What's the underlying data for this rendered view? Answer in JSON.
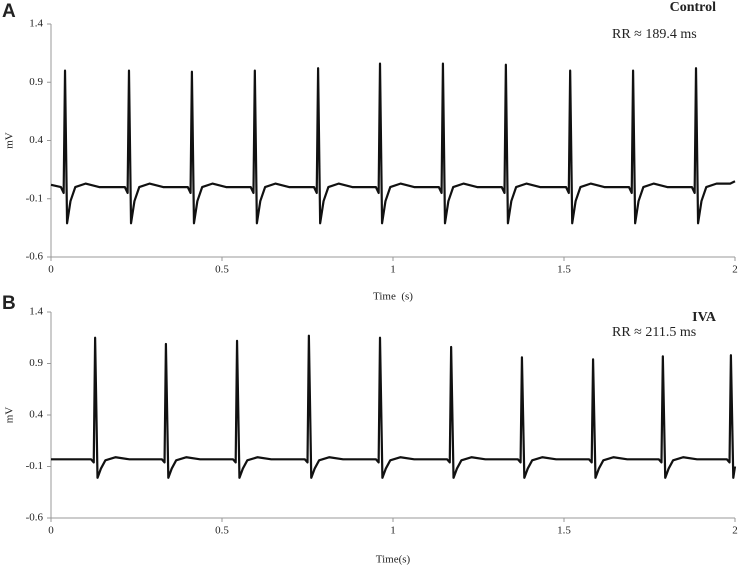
{
  "chart_data": [
    {
      "type": "line",
      "panel": "A",
      "title": "Control",
      "annotation": "RR ≈ 189.4 ms",
      "xlabel": "Time  (s)",
      "ylabel": "mV",
      "xlim": [
        0,
        2
      ],
      "xticks": [
        0,
        0.5,
        1,
        1.5,
        2
      ],
      "ylim": [
        -0.6,
        1.4
      ],
      "yticks": [
        -0.6,
        -0.1,
        0.4,
        0.9,
        1.4
      ],
      "x": [
        0,
        0.029,
        0.037,
        0.041,
        0.047,
        0.057,
        0.071,
        0.101,
        0.141,
        0.216,
        0.224,
        0.228,
        0.234,
        0.244,
        0.258,
        0.288,
        0.328,
        0.4,
        0.408,
        0.412,
        0.418,
        0.428,
        0.442,
        0.472,
        0.512,
        0.584,
        0.592,
        0.596,
        0.602,
        0.612,
        0.626,
        0.656,
        0.696,
        0.769,
        0.777,
        0.781,
        0.787,
        0.797,
        0.811,
        0.841,
        0.881,
        0.95,
        0.958,
        0.962,
        0.968,
        0.978,
        0.992,
        1.022,
        1.062,
        1.134,
        1.142,
        1.146,
        1.152,
        1.162,
        1.176,
        1.206,
        1.246,
        1.318,
        1.326,
        1.33,
        1.336,
        1.346,
        1.36,
        1.39,
        1.43,
        1.506,
        1.514,
        1.518,
        1.524,
        1.534,
        1.548,
        1.578,
        1.618,
        1.69,
        1.698,
        1.702,
        1.708,
        1.718,
        1.732,
        1.762,
        1.802,
        1.874,
        1.882,
        1.886,
        1.892,
        1.902,
        1.916,
        1.946,
        1.986,
        2
      ],
      "series": [
        {
          "color": "#111111",
          "values": [
            0.02,
            0.0,
            -0.05,
            1.0,
            -0.31,
            -0.12,
            0.0,
            0.03,
            0.0,
            0.0,
            -0.05,
            1.0,
            -0.31,
            -0.12,
            0.0,
            0.03,
            0.0,
            0.0,
            -0.05,
            0.99,
            -0.31,
            -0.12,
            0.0,
            0.03,
            0.0,
            0.0,
            -0.05,
            1.0,
            -0.31,
            -0.12,
            0.0,
            0.03,
            0.0,
            0.0,
            -0.05,
            1.02,
            -0.31,
            -0.12,
            0.0,
            0.03,
            0.0,
            0.0,
            -0.05,
            1.06,
            -0.31,
            -0.12,
            0.0,
            0.03,
            0.0,
            0.0,
            -0.05,
            1.06,
            -0.31,
            -0.12,
            0.0,
            0.03,
            0.0,
            0.0,
            -0.05,
            1.05,
            -0.31,
            -0.12,
            0.0,
            0.03,
            0.0,
            0.0,
            -0.05,
            1.0,
            -0.31,
            -0.12,
            0.0,
            0.03,
            0.0,
            0.0,
            -0.05,
            1.0,
            -0.31,
            -0.12,
            0.0,
            0.03,
            0.0,
            0.0,
            -0.05,
            1.02,
            -0.31,
            -0.12,
            0.0,
            0.03,
            0.03,
            0.05
          ]
        }
      ]
    },
    {
      "type": "line",
      "panel": "B",
      "title": "IVA",
      "annotation": "RR ≈ 211.5 ms",
      "xlabel": "Time(s)",
      "ylabel": "mV",
      "xlim": [
        0,
        2
      ],
      "xticks": [
        0,
        0.5,
        1,
        1.5,
        2
      ],
      "ylim": [
        -0.6,
        1.4
      ],
      "yticks": [
        -0.6,
        -0.1,
        0.4,
        0.9,
        1.4
      ],
      "x": [
        0,
        0.117,
        0.125,
        0.129,
        0.136,
        0.146,
        0.159,
        0.189,
        0.229,
        0.324,
        0.332,
        0.336,
        0.343,
        0.353,
        0.366,
        0.396,
        0.436,
        0.532,
        0.54,
        0.544,
        0.551,
        0.561,
        0.574,
        0.604,
        0.644,
        0.742,
        0.75,
        0.754,
        0.761,
        0.771,
        0.784,
        0.814,
        0.854,
        0.95,
        0.958,
        0.962,
        0.969,
        0.979,
        0.992,
        1.022,
        1.062,
        1.158,
        1.166,
        1.17,
        1.177,
        1.187,
        1.2,
        1.23,
        1.27,
        1.365,
        1.373,
        1.377,
        1.384,
        1.394,
        1.407,
        1.437,
        1.477,
        1.573,
        1.581,
        1.585,
        1.592,
        1.602,
        1.615,
        1.645,
        1.685,
        1.777,
        1.785,
        1.789,
        1.796,
        1.806,
        1.819,
        1.849,
        1.889,
        1.976,
        1.984,
        1.988,
        1.995,
        2
      ],
      "series": [
        {
          "color": "#111111",
          "values": [
            -0.03,
            -0.03,
            -0.06,
            1.15,
            -0.21,
            -0.12,
            -0.04,
            -0.01,
            -0.03,
            -0.03,
            -0.06,
            1.09,
            -0.21,
            -0.12,
            -0.04,
            -0.01,
            -0.03,
            -0.03,
            -0.06,
            1.12,
            -0.21,
            -0.12,
            -0.04,
            -0.01,
            -0.03,
            -0.03,
            -0.06,
            1.17,
            -0.21,
            -0.12,
            -0.04,
            -0.01,
            -0.03,
            -0.03,
            -0.06,
            1.15,
            -0.21,
            -0.12,
            -0.04,
            -0.01,
            -0.03,
            -0.03,
            -0.06,
            1.06,
            -0.21,
            -0.12,
            -0.04,
            -0.01,
            -0.03,
            -0.03,
            -0.06,
            0.96,
            -0.21,
            -0.12,
            -0.04,
            -0.01,
            -0.03,
            -0.03,
            -0.06,
            0.94,
            -0.21,
            -0.12,
            -0.04,
            -0.01,
            -0.03,
            -0.03,
            -0.06,
            0.97,
            -0.21,
            -0.12,
            -0.04,
            -0.01,
            -0.03,
            -0.03,
            -0.06,
            0.98,
            -0.21,
            -0.1
          ]
        }
      ]
    }
  ]
}
